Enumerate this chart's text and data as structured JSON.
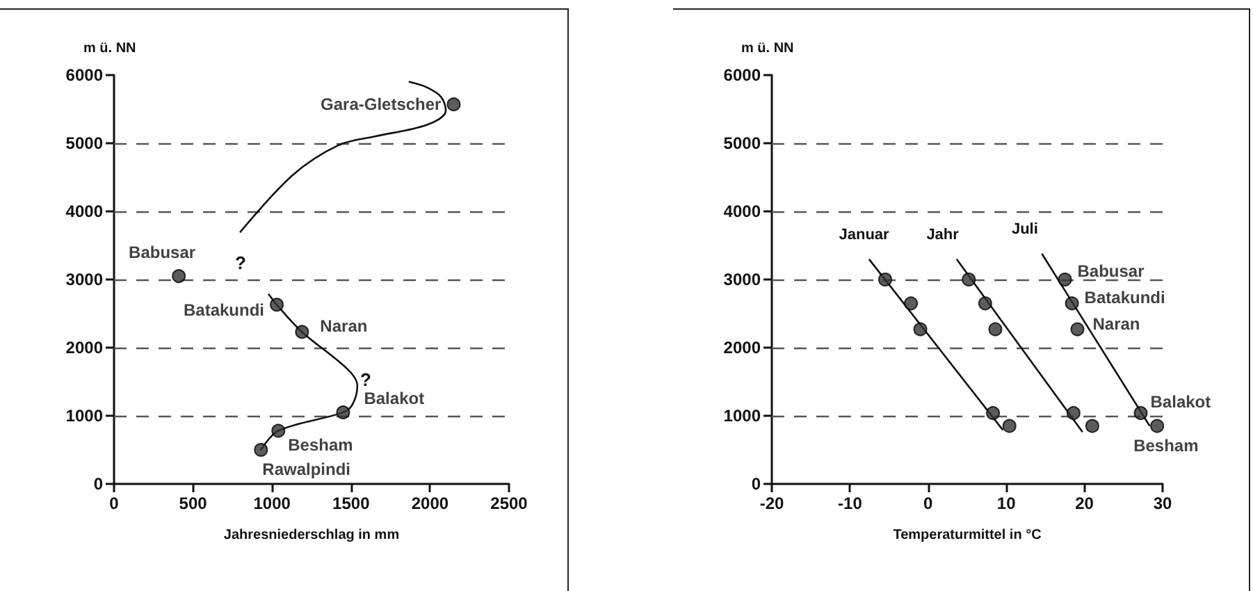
{
  "chart_data": [
    {
      "type": "scatter",
      "xlabel": "Jahresniederschlag in mm",
      "ylabel": "m ü. NN",
      "xlim": [
        0,
        2500
      ],
      "ylim": [
        0,
        6000
      ],
      "xticks": [
        0,
        500,
        1000,
        1500,
        2000,
        2500
      ],
      "yticks": [
        0,
        1000,
        2000,
        3000,
        4000,
        5000,
        6000
      ],
      "grid": false,
      "legend": false,
      "marker": "circle",
      "series": [
        {
          "type": "scatter",
          "color": "#333333",
          "x": [
            2150,
            410,
            1030,
            1190,
            1450,
            1040,
            930
          ],
          "values": [
            5570,
            3050,
            2630,
            2230,
            1050,
            780,
            500
          ]
        },
        {
          "type": "line",
          "color": "#111111",
          "marker": "none",
          "x": [
            800,
            1130,
            1420,
            1650,
            1980,
            2100,
            2070,
            1980,
            1870
          ],
          "values": [
            3700,
            4530,
            4970,
            5100,
            5270,
            5480,
            5680,
            5820,
            5900
          ]
        },
        {
          "type": "line",
          "color": "#111111",
          "marker": "none",
          "x": [
            980,
            1030,
            1190,
            1480,
            1540,
            1510,
            1450,
            1040,
            930
          ],
          "values": [
            2780,
            2630,
            2230,
            1680,
            1440,
            1170,
            1050,
            780,
            500
          ]
        }
      ],
      "ref_lines": [
        {
          "axis": "y",
          "value": 1000,
          "color": "#555555",
          "line_style": "dashed"
        },
        {
          "axis": "y",
          "value": 2000,
          "color": "#555555",
          "line_style": "dashed"
        },
        {
          "axis": "y",
          "value": 3000,
          "color": "#555555",
          "line_style": "dashed"
        },
        {
          "axis": "y",
          "value": 4000,
          "color": "#555555",
          "line_style": "dashed"
        },
        {
          "axis": "y",
          "value": 5000,
          "color": "#555555",
          "line_style": "dashed"
        }
      ],
      "annotations": [
        {
          "text": "Gara-Gletscher",
          "x": 2150,
          "y": 5570
        },
        {
          "text": "Babusar",
          "x": 410,
          "y": 3050
        },
        {
          "text": "Batakundi",
          "x": 1030,
          "y": 2630
        },
        {
          "text": "Naran",
          "x": 1190,
          "y": 2230
        },
        {
          "text": "Balakot",
          "x": 1450,
          "y": 1050
        },
        {
          "text": "Besham",
          "x": 1040,
          "y": 780
        },
        {
          "text": "Rawalpindi",
          "x": 930,
          "y": 500
        },
        "?",
        "?"
      ]
    },
    {
      "type": "scatter",
      "xlabel": "Temperaturmittel in °C",
      "ylabel": "m ü. NN",
      "xlim": [
        -20,
        30
      ],
      "ylim": [
        0,
        6000
      ],
      "xticks": [
        -20,
        -10,
        0,
        10,
        20,
        30
      ],
      "yticks": [
        0,
        1000,
        2000,
        3000,
        4000,
        5000,
        6000
      ],
      "grid": false,
      "legend": false,
      "marker": "circle",
      "series": [
        {
          "type": "scatter",
          "color": "#333333",
          "x": [
            -5.5,
            -2.2,
            -1.0,
            8.3,
            10.4
          ],
          "values": [
            3000,
            2650,
            2270,
            1040,
            850
          ]
        },
        {
          "type": "scatter",
          "color": "#333333",
          "x": [
            5.2,
            7.3,
            8.6,
            18.6,
            21.0
          ],
          "values": [
            3000,
            2650,
            2270,
            1040,
            850
          ]
        },
        {
          "type": "scatter",
          "color": "#333333",
          "x": [
            17.5,
            18.4,
            19.1,
            27.2,
            29.3
          ],
          "values": [
            3000,
            2650,
            2270,
            1040,
            850
          ]
        },
        {
          "type": "line",
          "name": "Januar",
          "color": "#111111",
          "marker": "none",
          "x": [
            9.5,
            -7.5
          ],
          "values": [
            800,
            3290
          ]
        },
        {
          "type": "line",
          "name": "Jahr",
          "color": "#111111",
          "marker": "none",
          "x": [
            19.7,
            3.7
          ],
          "values": [
            770,
            3290
          ]
        },
        {
          "type": "line",
          "name": "Juli",
          "color": "#111111",
          "marker": "none",
          "x": [
            28.3,
            14.6
          ],
          "values": [
            860,
            3370
          ]
        }
      ],
      "ref_lines": [
        {
          "axis": "y",
          "value": 1000,
          "color": "#555555",
          "line_style": "dashed"
        },
        {
          "axis": "y",
          "value": 2000,
          "color": "#555555",
          "line_style": "dashed"
        },
        {
          "axis": "y",
          "value": 3000,
          "color": "#555555",
          "line_style": "dashed"
        },
        {
          "axis": "y",
          "value": 4000,
          "color": "#555555",
          "line_style": "dashed"
        },
        {
          "axis": "y",
          "value": 5000,
          "color": "#555555",
          "line_style": "dashed"
        }
      ],
      "annotations": [
        {
          "text": "Babusar",
          "x": 17.5,
          "y": 3000
        },
        {
          "text": "Batakundi",
          "x": 18.4,
          "y": 2650
        },
        {
          "text": "Naran",
          "x": 19.1,
          "y": 2270
        },
        {
          "text": "Balakot",
          "x": 27.2,
          "y": 1040
        },
        {
          "text": "Besham",
          "x": 29.3,
          "y": 850
        }
      ]
    }
  ]
}
